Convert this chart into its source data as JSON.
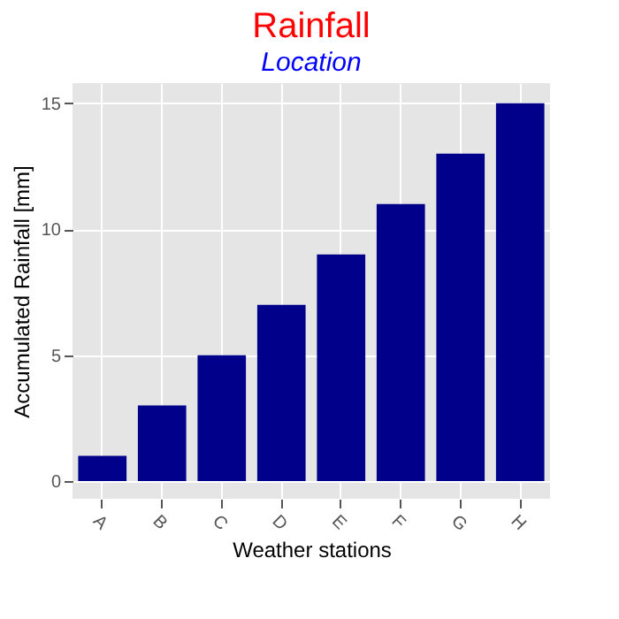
{
  "chart_data": {
    "type": "bar",
    "title": "Rainfall",
    "subtitle": "Location",
    "xlabel": "Weather    stations",
    "ylabel": "Accumulated Rainfall [mm]",
    "categories": [
      "A",
      "B",
      "C",
      "D",
      "E",
      "F",
      "G",
      "H"
    ],
    "values": [
      1,
      3,
      5,
      7,
      9,
      11,
      13,
      15
    ],
    "color": "#00008b",
    "ylim": [
      -0.7,
      15.8
    ],
    "yticks": [
      0,
      5,
      10,
      15
    ],
    "grid": true
  }
}
